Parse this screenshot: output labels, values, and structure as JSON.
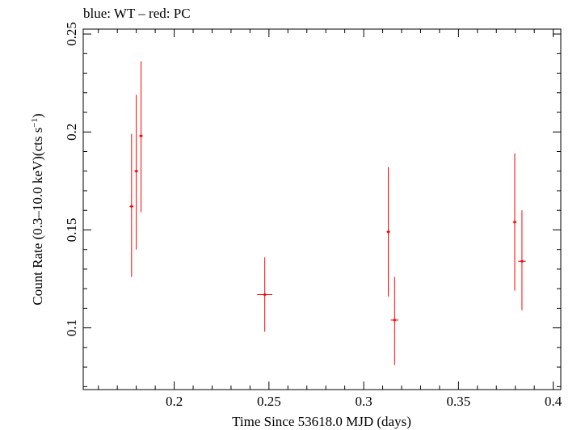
{
  "chart_data": {
    "type": "scatter",
    "title": "blue: WT – red: PC",
    "xlabel": "Time Since 53618.0 MJD (days)",
    "ylabel_main": "Count Rate (0.3–10.0 keV)(cts s",
    "ylabel_sup": "−1",
    "ylabel_end": ")",
    "xlim": [
      0.152,
      0.404
    ],
    "ylim": [
      0.0685,
      0.2525
    ],
    "x_ticks": [
      0.2,
      0.25,
      0.3,
      0.35,
      0.4
    ],
    "x_tick_labels": [
      "0.2",
      "0.25",
      "0.3",
      "0.35",
      "0.4"
    ],
    "y_ticks": [
      0.1,
      0.15,
      0.2,
      0.25
    ],
    "y_tick_labels": [
      "0.1",
      "0.15",
      "0.2",
      "0.25"
    ],
    "grid": false,
    "series": [
      {
        "color": "#ff0000",
        "points": [
          {
            "x": 0.1775,
            "xerr": 0.001,
            "y": 0.162,
            "ylo": 0.126,
            "yhi": 0.199
          },
          {
            "x": 0.18,
            "xerr": 0.001,
            "y": 0.18,
            "ylo": 0.14,
            "yhi": 0.219
          },
          {
            "x": 0.1825,
            "xerr": 0.001,
            "y": 0.198,
            "ylo": 0.159,
            "yhi": 0.236
          },
          {
            "x": 0.2478,
            "xerr": 0.004,
            "y": 0.117,
            "ylo": 0.098,
            "yhi": 0.136
          },
          {
            "x": 0.313,
            "xerr": 0.001,
            "y": 0.149,
            "ylo": 0.116,
            "yhi": 0.182
          },
          {
            "x": 0.3163,
            "xerr": 0.002,
            "y": 0.104,
            "ylo": 0.081,
            "yhi": 0.126
          },
          {
            "x": 0.3797,
            "xerr": 0.001,
            "y": 0.154,
            "ylo": 0.119,
            "yhi": 0.189
          },
          {
            "x": 0.3835,
            "xerr": 0.002,
            "y": 0.134,
            "ylo": 0.109,
            "yhi": 0.16
          }
        ]
      }
    ]
  }
}
